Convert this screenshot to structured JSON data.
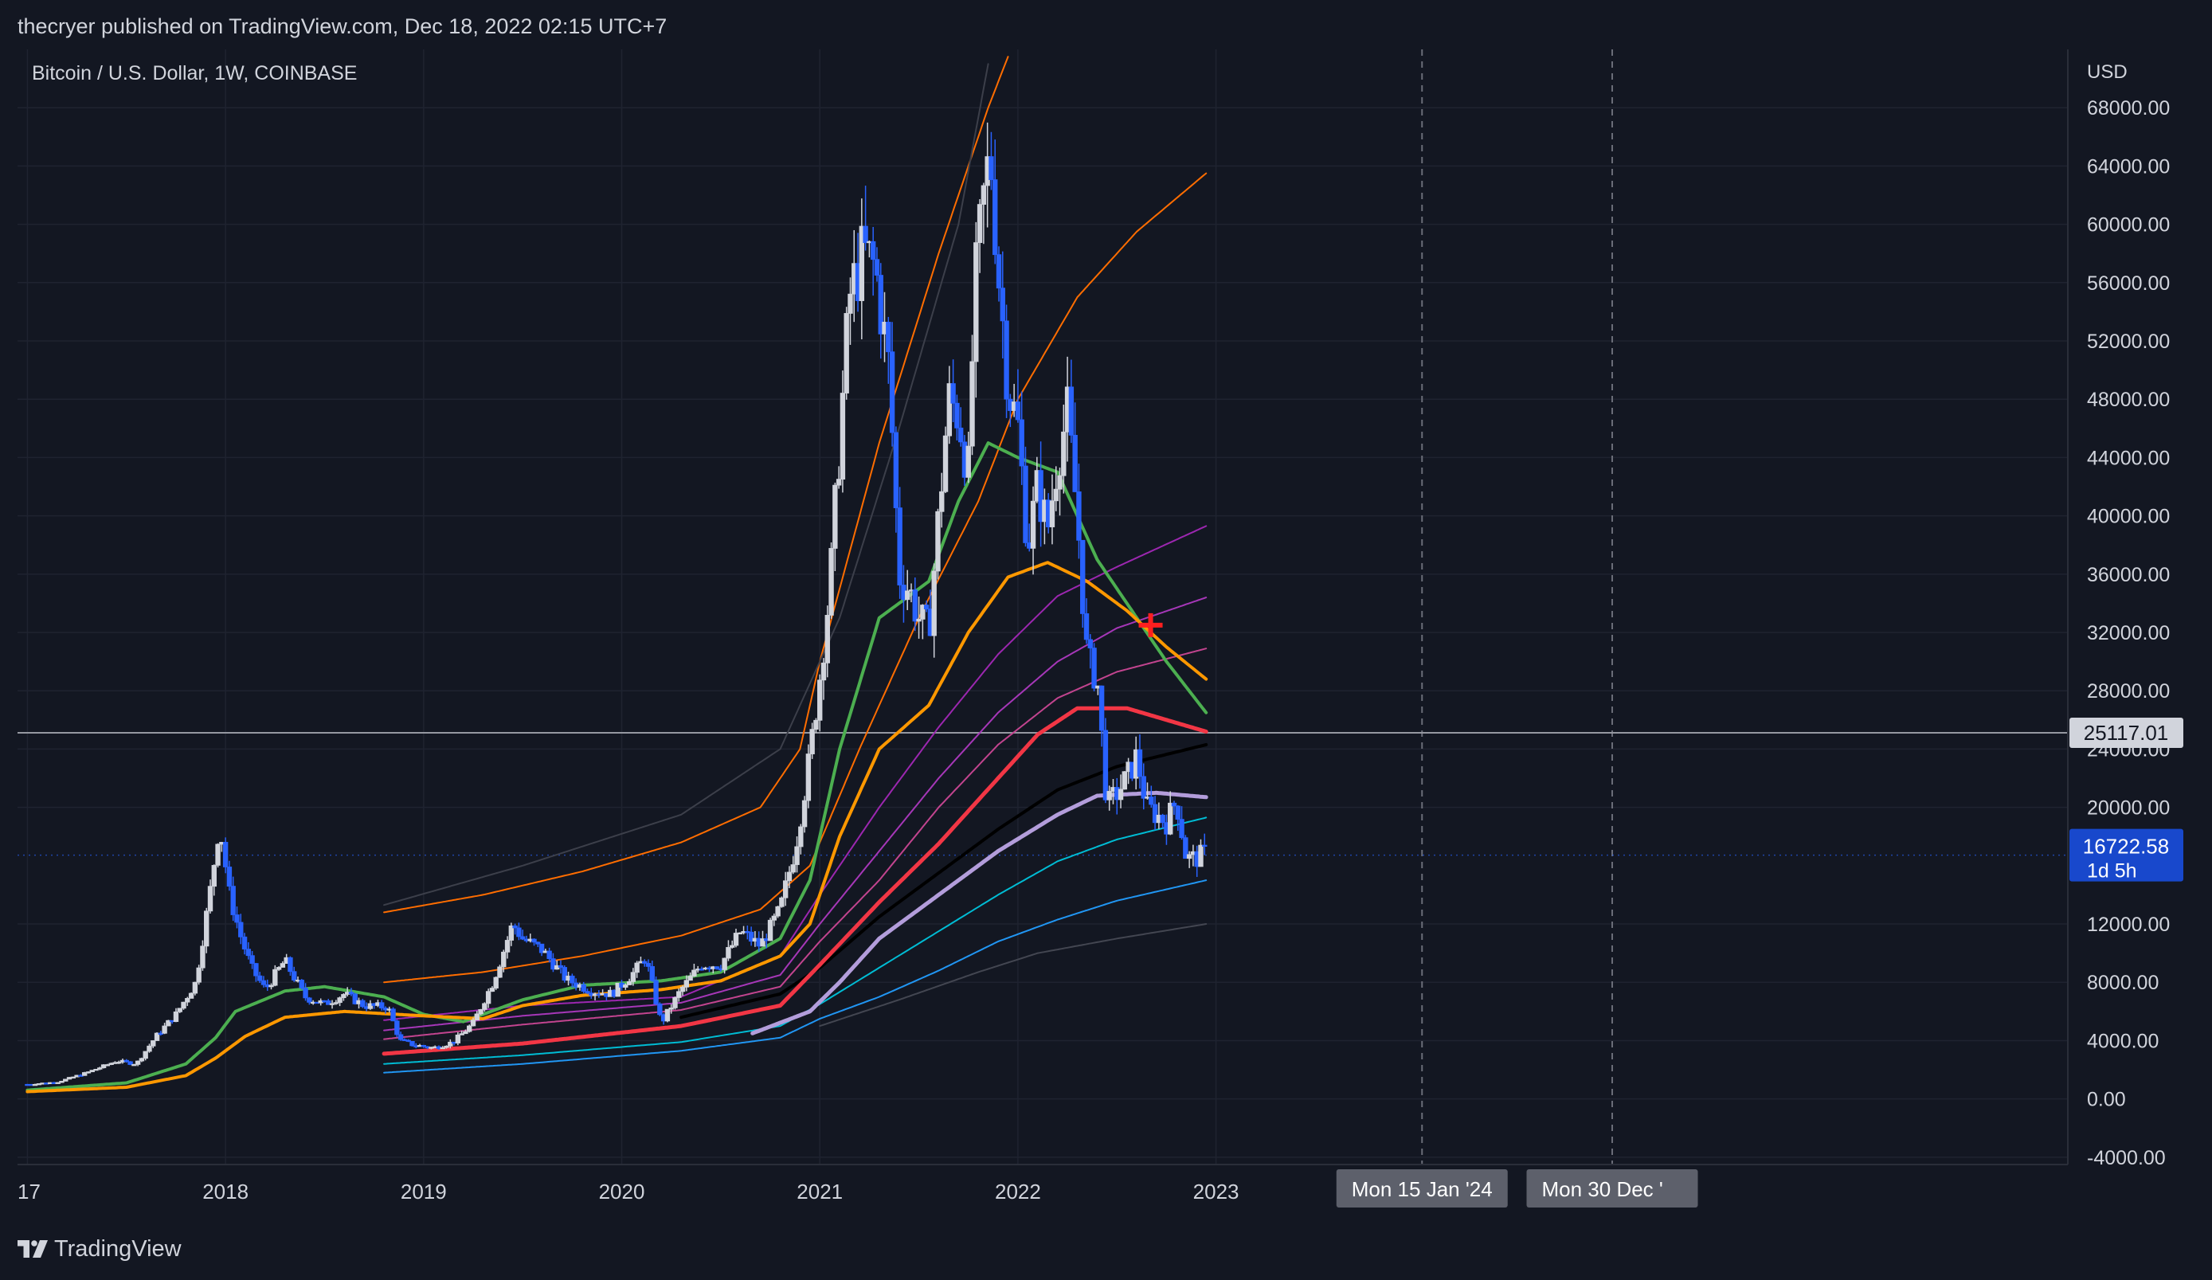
{
  "header": {
    "publish_line": "thecryer published on TradingView.com, Dec 18, 2022 02:15 UTC+7"
  },
  "symbol_line": "Bitcoin / U.S. Dollar, 1W, COINBASE",
  "footer": {
    "brand": "TradingView"
  },
  "colors": {
    "background": "#131722",
    "grid": "#1f2330",
    "up": "#d1d4dc",
    "down": "#2962ff",
    "price_label": "#1848cc"
  },
  "chart_data": {
    "type": "candlestick",
    "currency_label": "USD",
    "y_ticks": [
      68000,
      64000,
      60000,
      56000,
      52000,
      48000,
      44000,
      40000,
      36000,
      32000,
      28000,
      24000,
      20000,
      12000,
      8000,
      4000,
      0,
      -4000
    ],
    "y_tick_labels": [
      "68000.00",
      "64000.00",
      "60000.00",
      "56000.00",
      "52000.00",
      "48000.00",
      "44000.00",
      "40000.00",
      "36000.00",
      "32000.00",
      "28000.00",
      "24000.00",
      "20000.00",
      "12000.00",
      "8000.00",
      "4000.00",
      "0.00",
      "-4000.00"
    ],
    "ylim": [
      -4500,
      72000
    ],
    "x_tick_labels": [
      {
        "label": "17",
        "year": 2017.0
      },
      {
        "label": "2018",
        "year": 2018.0
      },
      {
        "label": "2019",
        "year": 2019.0
      },
      {
        "label": "2020",
        "year": 2020.0
      },
      {
        "label": "2021",
        "year": 2021.0
      },
      {
        "label": "2022",
        "year": 2022.0
      },
      {
        "label": "2023",
        "year": 2023.0
      }
    ],
    "xlim": [
      2016.95,
      2027.3
    ],
    "date_markers": [
      {
        "label": "Mon 15 Jan '24",
        "year": 2024.04
      },
      {
        "label": "Mon 30 Dec '",
        "year": 2025.0
      }
    ],
    "horizontal_line": {
      "value": 25117.01,
      "label": "25117.01"
    },
    "last_price": {
      "value": 16722.58,
      "label": "16722.58",
      "countdown": "1d 5h"
    },
    "marker": {
      "year": 2022.67,
      "value": 32500
    },
    "price_path": [
      [
        2017.0,
        1000
      ],
      [
        2017.15,
        1150
      ],
      [
        2017.3,
        1800
      ],
      [
        2017.45,
        2600
      ],
      [
        2017.55,
        2400
      ],
      [
        2017.65,
        4300
      ],
      [
        2017.75,
        5800
      ],
      [
        2017.85,
        8000
      ],
      [
        2017.92,
        14000
      ],
      [
        2017.97,
        19000
      ],
      [
        2018.02,
        14000
      ],
      [
        2018.08,
        11000
      ],
      [
        2018.13,
        9000
      ],
      [
        2018.2,
        7500
      ],
      [
        2018.3,
        9500
      ],
      [
        2018.4,
        7000
      ],
      [
        2018.5,
        6500
      ],
      [
        2018.6,
        7200
      ],
      [
        2018.7,
        6400
      ],
      [
        2018.82,
        6300
      ],
      [
        2018.88,
        4000
      ],
      [
        2018.95,
        3700
      ],
      [
        2019.05,
        3500
      ],
      [
        2019.15,
        3900
      ],
      [
        2019.25,
        5200
      ],
      [
        2019.35,
        8000
      ],
      [
        2019.45,
        12000
      ],
      [
        2019.5,
        11000
      ],
      [
        2019.6,
        10200
      ],
      [
        2019.72,
        8200
      ],
      [
        2019.85,
        7400
      ],
      [
        2019.95,
        7200
      ],
      [
        2020.05,
        8500
      ],
      [
        2020.12,
        9700
      ],
      [
        2020.2,
        5200
      ],
      [
        2020.3,
        7500
      ],
      [
        2020.4,
        9200
      ],
      [
        2020.5,
        9200
      ],
      [
        2020.6,
        11500
      ],
      [
        2020.7,
        10500
      ],
      [
        2020.8,
        13000
      ],
      [
        2020.88,
        17500
      ],
      [
        2020.95,
        23500
      ],
      [
        2021.0,
        29000
      ],
      [
        2021.05,
        35000
      ],
      [
        2021.1,
        45000
      ],
      [
        2021.15,
        55000
      ],
      [
        2021.22,
        58000
      ],
      [
        2021.28,
        57000
      ],
      [
        2021.35,
        50000
      ],
      [
        2021.4,
        36000
      ],
      [
        2021.45,
        35000
      ],
      [
        2021.5,
        33000
      ],
      [
        2021.55,
        32000
      ],
      [
        2021.6,
        40000
      ],
      [
        2021.65,
        48000
      ],
      [
        2021.7,
        47000
      ],
      [
        2021.75,
        43000
      ],
      [
        2021.78,
        55000
      ],
      [
        2021.82,
        61000
      ],
      [
        2021.86,
        65000
      ],
      [
        2021.9,
        57000
      ],
      [
        2021.95,
        49000
      ],
      [
        2022.0,
        46000
      ],
      [
        2022.05,
        38000
      ],
      [
        2022.1,
        42000
      ],
      [
        2022.15,
        39000
      ],
      [
        2022.2,
        44000
      ],
      [
        2022.25,
        47000
      ],
      [
        2022.3,
        40000
      ],
      [
        2022.35,
        30000
      ],
      [
        2022.4,
        29000
      ],
      [
        2022.45,
        20000
      ],
      [
        2022.5,
        21000
      ],
      [
        2022.55,
        22000
      ],
      [
        2022.6,
        23500
      ],
      [
        2022.65,
        20000
      ],
      [
        2022.7,
        19500
      ],
      [
        2022.75,
        19000
      ],
      [
        2022.8,
        20500
      ],
      [
        2022.85,
        16500
      ],
      [
        2022.9,
        16500
      ],
      [
        2022.95,
        16900
      ]
    ],
    "series": [
      {
        "color": "#4caf50",
        "width": 4,
        "points": [
          [
            2017.0,
            600
          ],
          [
            2017.5,
            1100
          ],
          [
            2017.8,
            2400
          ],
          [
            2017.95,
            4200
          ],
          [
            2018.05,
            6000
          ],
          [
            2018.3,
            7400
          ],
          [
            2018.5,
            7700
          ],
          [
            2018.8,
            7000
          ],
          [
            2019.0,
            5800
          ],
          [
            2019.2,
            5300
          ],
          [
            2019.5,
            6800
          ],
          [
            2019.8,
            7800
          ],
          [
            2020.2,
            8100
          ],
          [
            2020.5,
            8700
          ],
          [
            2020.8,
            11000
          ],
          [
            2020.95,
            15000
          ],
          [
            2021.1,
            24000
          ],
          [
            2021.3,
            33000
          ],
          [
            2021.55,
            35500
          ],
          [
            2021.7,
            41000
          ],
          [
            2021.85,
            45000
          ],
          [
            2022.0,
            44000
          ],
          [
            2022.2,
            43000
          ],
          [
            2022.4,
            37000
          ],
          [
            2022.6,
            33000
          ],
          [
            2022.75,
            30000
          ],
          [
            2022.95,
            26500
          ]
        ]
      },
      {
        "color": "#ff9800",
        "width": 4,
        "points": [
          [
            2017.0,
            500
          ],
          [
            2017.5,
            800
          ],
          [
            2017.8,
            1600
          ],
          [
            2017.95,
            2800
          ],
          [
            2018.1,
            4300
          ],
          [
            2018.3,
            5600
          ],
          [
            2018.6,
            6000
          ],
          [
            2019.0,
            5700
          ],
          [
            2019.3,
            5500
          ],
          [
            2019.5,
            6400
          ],
          [
            2019.8,
            7100
          ],
          [
            2020.2,
            7500
          ],
          [
            2020.5,
            8100
          ],
          [
            2020.8,
            9800
          ],
          [
            2020.95,
            12000
          ],
          [
            2021.1,
            18000
          ],
          [
            2021.3,
            24000
          ],
          [
            2021.55,
            27000
          ],
          [
            2021.75,
            32000
          ],
          [
            2021.95,
            35800
          ],
          [
            2022.15,
            36800
          ],
          [
            2022.35,
            35500
          ],
          [
            2022.55,
            33500
          ],
          [
            2022.75,
            31000
          ],
          [
            2022.95,
            28800
          ]
        ]
      },
      {
        "color": "#ff6d00",
        "width": 2,
        "points": [
          [
            2018.8,
            12800
          ],
          [
            2019.3,
            14000
          ],
          [
            2019.8,
            15600
          ],
          [
            2020.3,
            17600
          ],
          [
            2020.7,
            20000
          ],
          [
            2020.9,
            24000
          ],
          [
            2021.0,
            30000
          ],
          [
            2021.3,
            45000
          ],
          [
            2021.6,
            58000
          ],
          [
            2021.85,
            68000
          ],
          [
            2021.95,
            71500
          ]
        ]
      },
      {
        "color": "#ff6d00",
        "width": 2,
        "points": [
          [
            2018.8,
            8000
          ],
          [
            2019.3,
            8700
          ],
          [
            2019.8,
            9800
          ],
          [
            2020.3,
            11200
          ],
          [
            2020.7,
            13000
          ],
          [
            2020.95,
            16000
          ],
          [
            2021.2,
            24000
          ],
          [
            2021.5,
            33000
          ],
          [
            2021.8,
            41000
          ],
          [
            2022.0,
            48000
          ],
          [
            2022.3,
            55000
          ],
          [
            2022.6,
            59500
          ],
          [
            2022.95,
            63500
          ]
        ]
      },
      {
        "color": "#3c3f4a",
        "width": 2,
        "points": [
          [
            2018.8,
            13300
          ],
          [
            2019.5,
            16000
          ],
          [
            2020.3,
            19500
          ],
          [
            2020.8,
            24000
          ],
          [
            2021.1,
            33000
          ],
          [
            2021.4,
            46000
          ],
          [
            2021.7,
            60000
          ],
          [
            2021.85,
            71000
          ]
        ]
      },
      {
        "color": "#9c27b0",
        "width": 2,
        "points": [
          [
            2018.8,
            5400
          ],
          [
            2019.5,
            6400
          ],
          [
            2020.3,
            7000
          ],
          [
            2020.8,
            9800
          ],
          [
            2021.0,
            14000
          ],
          [
            2021.3,
            20000
          ],
          [
            2021.6,
            25500
          ],
          [
            2021.9,
            30500
          ],
          [
            2022.2,
            34500
          ],
          [
            2022.5,
            36500
          ],
          [
            2022.95,
            39300
          ]
        ]
      },
      {
        "color": "#a637b8",
        "width": 2,
        "points": [
          [
            2018.8,
            4700
          ],
          [
            2019.5,
            5700
          ],
          [
            2020.3,
            6600
          ],
          [
            2020.8,
            8500
          ],
          [
            2021.0,
            12000
          ],
          [
            2021.3,
            17000
          ],
          [
            2021.6,
            22000
          ],
          [
            2021.9,
            26500
          ],
          [
            2022.2,
            30000
          ],
          [
            2022.5,
            32300
          ],
          [
            2022.95,
            34400
          ]
        ]
      },
      {
        "color": "#c2448f",
        "width": 2,
        "points": [
          [
            2018.8,
            4100
          ],
          [
            2019.5,
            5100
          ],
          [
            2020.3,
            6100
          ],
          [
            2020.8,
            7700
          ],
          [
            2021.0,
            10800
          ],
          [
            2021.3,
            15000
          ],
          [
            2021.6,
            20000
          ],
          [
            2021.9,
            24300
          ],
          [
            2022.2,
            27500
          ],
          [
            2022.5,
            29300
          ],
          [
            2022.95,
            30900
          ]
        ]
      },
      {
        "color": "#f23645",
        "width": 5,
        "points": [
          [
            2018.8,
            3100
          ],
          [
            2019.5,
            3800
          ],
          [
            2020.3,
            5000
          ],
          [
            2020.8,
            6400
          ],
          [
            2021.0,
            9200
          ],
          [
            2021.3,
            13500
          ],
          [
            2021.6,
            17500
          ],
          [
            2021.9,
            22000
          ],
          [
            2022.1,
            25000
          ],
          [
            2022.3,
            26800
          ],
          [
            2022.55,
            26800
          ],
          [
            2022.95,
            25200
          ]
        ]
      },
      {
        "color": "#000000",
        "width": 4,
        "points": [
          [
            2020.3,
            5600
          ],
          [
            2020.8,
            7200
          ],
          [
            2021.0,
            9000
          ],
          [
            2021.3,
            12500
          ],
          [
            2021.6,
            15500
          ],
          [
            2021.9,
            18500
          ],
          [
            2022.2,
            21200
          ],
          [
            2022.5,
            22800
          ],
          [
            2022.95,
            24300
          ]
        ]
      },
      {
        "color": "#b39ddb",
        "width": 5,
        "points": [
          [
            2020.66,
            4500
          ],
          [
            2020.95,
            6000
          ],
          [
            2021.1,
            8000
          ],
          [
            2021.3,
            11000
          ],
          [
            2021.6,
            14000
          ],
          [
            2021.9,
            17000
          ],
          [
            2022.2,
            19500
          ],
          [
            2022.4,
            20800
          ],
          [
            2022.7,
            21000
          ],
          [
            2022.95,
            20700
          ]
        ]
      },
      {
        "color": "#00bcd4",
        "width": 2,
        "points": [
          [
            2018.8,
            2400
          ],
          [
            2019.5,
            3000
          ],
          [
            2020.3,
            3900
          ],
          [
            2020.8,
            5000
          ],
          [
            2021.0,
            6500
          ],
          [
            2021.3,
            9000
          ],
          [
            2021.6,
            11500
          ],
          [
            2021.9,
            14000
          ],
          [
            2022.2,
            16300
          ],
          [
            2022.5,
            17800
          ],
          [
            2022.95,
            19300
          ]
        ]
      },
      {
        "color": "#2196f3",
        "width": 2,
        "points": [
          [
            2018.8,
            1800
          ],
          [
            2019.5,
            2400
          ],
          [
            2020.3,
            3300
          ],
          [
            2020.8,
            4200
          ],
          [
            2021.0,
            5500
          ],
          [
            2021.3,
            7000
          ],
          [
            2021.6,
            8800
          ],
          [
            2021.9,
            10800
          ],
          [
            2022.2,
            12300
          ],
          [
            2022.5,
            13600
          ],
          [
            2022.95,
            15000
          ]
        ]
      },
      {
        "color": "#434651",
        "width": 2,
        "points": [
          [
            2021.0,
            5000
          ],
          [
            2021.4,
            6800
          ],
          [
            2021.8,
            8700
          ],
          [
            2022.1,
            10000
          ],
          [
            2022.5,
            11000
          ],
          [
            2022.95,
            12000
          ]
        ]
      }
    ]
  }
}
